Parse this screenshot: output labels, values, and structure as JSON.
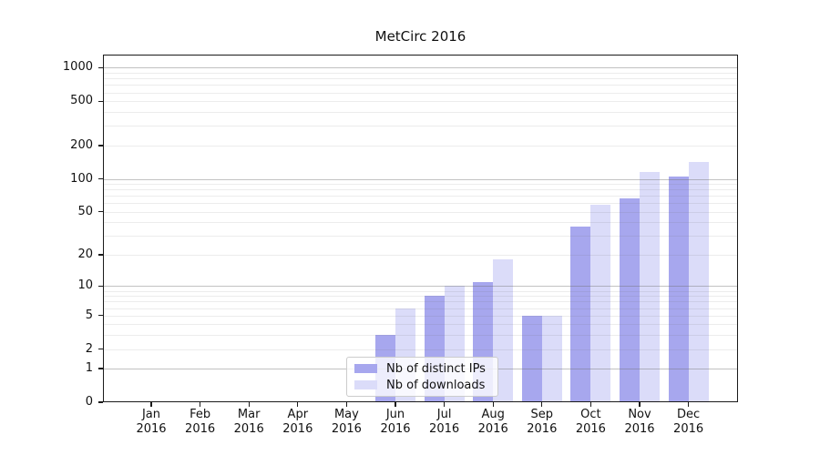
{
  "chart_data": {
    "type": "bar",
    "title": "MetCirc 2016",
    "year_label": "2016",
    "categories": [
      "Jan",
      "Feb",
      "Mar",
      "Apr",
      "May",
      "Jun",
      "Jul",
      "Aug",
      "Sep",
      "Oct",
      "Nov",
      "Dec"
    ],
    "series": [
      {
        "name": "Nb of distinct IPs",
        "color": "#a7a7ee",
        "values": [
          0,
          0,
          0,
          0,
          0,
          3,
          8,
          11,
          5,
          37,
          67,
          104
        ]
      },
      {
        "name": "Nb of downloads",
        "color": "#dbdcf9",
        "values": [
          0,
          0,
          0,
          0,
          0,
          6,
          10,
          18,
          5,
          58,
          115,
          143
        ]
      }
    ],
    "y_ticks": [
      0,
      1,
      2,
      5,
      10,
      20,
      50,
      100,
      200,
      500,
      1000
    ],
    "y_major_gridlines": [
      1,
      10,
      100,
      1000
    ],
    "y_minor_gridlines": [
      2,
      3,
      4,
      5,
      6,
      7,
      8,
      9,
      20,
      30,
      40,
      50,
      60,
      70,
      80,
      90,
      200,
      300,
      400,
      500,
      600,
      700,
      800,
      900
    ],
    "scale": "log1p",
    "ylim": [
      0,
      1300
    ],
    "grid": true,
    "legend_position": "lower center"
  }
}
